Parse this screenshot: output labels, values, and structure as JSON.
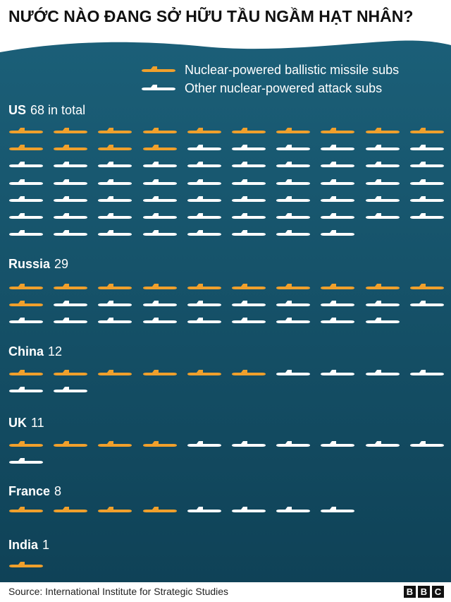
{
  "title": "NƯỚC NÀO ĐANG SỞ HỮU TẦU NGẦM HẠT NHÂN?",
  "colors": {
    "background": "#17566d",
    "ballistic": "#f0a02c",
    "attack": "#ffffff"
  },
  "legend": {
    "ballistic": "Nuclear-powered ballistic missile subs",
    "attack": "Other nuclear-powered attack subs"
  },
  "source": "Source: International Institute for Strategic Studies",
  "brand": [
    "B",
    "B",
    "C"
  ],
  "chart_data": {
    "type": "pictogram",
    "series": [
      {
        "name": "Nuclear-powered ballistic missile subs",
        "icon": "submarine-icon",
        "color": "#f0a02c"
      },
      {
        "name": "Other nuclear-powered attack subs",
        "icon": "submarine-icon",
        "color": "#ffffff"
      }
    ],
    "countries": [
      {
        "name": "US",
        "total": 68,
        "suffix": "in total",
        "ballistic": 14,
        "attack": 54
      },
      {
        "name": "Russia",
        "total": 29,
        "suffix": "",
        "ballistic": 11,
        "attack": 18
      },
      {
        "name": "China",
        "total": 12,
        "suffix": "",
        "ballistic": 6,
        "attack": 6
      },
      {
        "name": "UK",
        "total": 11,
        "suffix": "",
        "ballistic": 4,
        "attack": 7
      },
      {
        "name": "France",
        "total": 8,
        "suffix": "",
        "ballistic": 4,
        "attack": 4
      },
      {
        "name": "India",
        "total": 1,
        "suffix": "",
        "ballistic": 1,
        "attack": 0
      }
    ]
  }
}
